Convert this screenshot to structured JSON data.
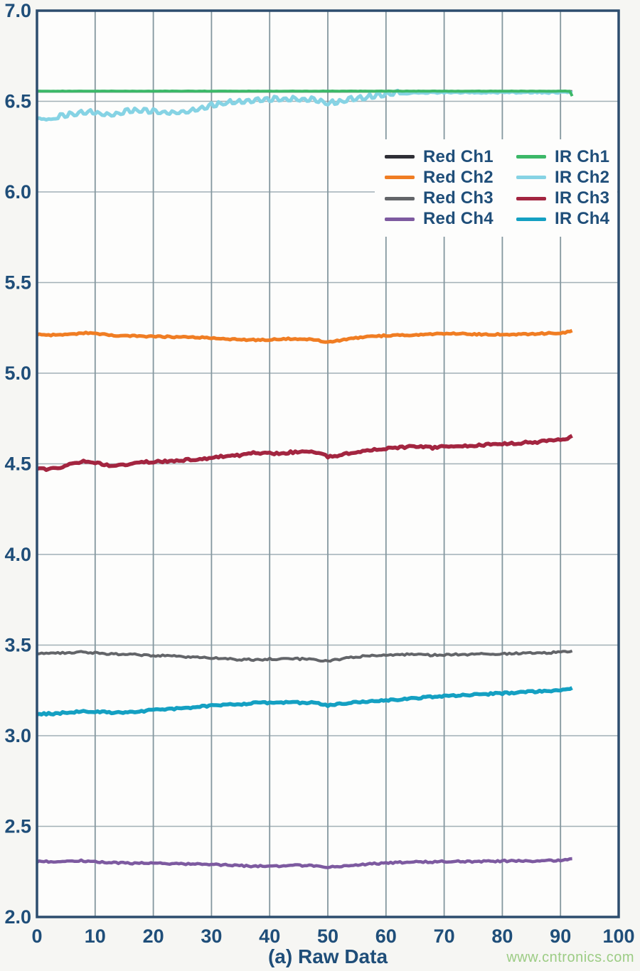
{
  "watermark": {
    "text": "www.cntronics.com",
    "color": "#9ccc84"
  },
  "chart_data": {
    "type": "line",
    "title": "(a) Raw Data",
    "xlabel": "",
    "ylabel": "",
    "xlim": [
      0,
      100
    ],
    "ylim": [
      2.0,
      7.0
    ],
    "grid": true,
    "legend_position": "inside-upper-right",
    "xticks": [
      "0",
      "10",
      "20",
      "30",
      "40",
      "50",
      "60",
      "70",
      "80",
      "90",
      "100"
    ],
    "yticks": [
      "7.0",
      "6.5",
      "6.0",
      "5.5",
      "5.0",
      "4.5",
      "4.0",
      "3.5",
      "3.0",
      "2.5",
      "2.0"
    ],
    "colors": {
      "frame": "#2d4d6e",
      "grid_vertical": "#84979f",
      "grid_horizontal": "#a2b0b6",
      "tick_text": "#1f4e79",
      "plot_background": "#fdfdfc"
    },
    "legend": {
      "columns": [
        [
          "Red Ch1",
          "Red Ch2",
          "Red Ch3",
          "Red Ch4"
        ],
        [
          "IR Ch1",
          "IR Ch2",
          "IR Ch3",
          "IR Ch4"
        ]
      ]
    },
    "series": [
      {
        "name": "Red Ch1",
        "color": "#2f2f36",
        "width": 3.5,
        "amp": 0.0,
        "points": [
          [
            0,
            6.555
          ],
          [
            92,
            6.555
          ]
        ]
      },
      {
        "name": "IR Ch2",
        "color": "#86d3e4",
        "width": 5,
        "amp": 0.004,
        "spike_amp": 0.016,
        "spike_range": [
          3,
          62
        ],
        "points": [
          [
            0,
            6.408
          ],
          [
            2,
            6.4
          ],
          [
            4,
            6.408
          ],
          [
            6,
            6.42
          ],
          [
            8,
            6.432
          ],
          [
            10,
            6.43
          ],
          [
            12,
            6.418
          ],
          [
            14,
            6.425
          ],
          [
            16,
            6.438
          ],
          [
            18,
            6.44
          ],
          [
            20,
            6.435
          ],
          [
            22,
            6.43
          ],
          [
            24,
            6.432
          ],
          [
            26,
            6.438
          ],
          [
            28,
            6.45
          ],
          [
            30,
            6.468
          ],
          [
            32,
            6.48
          ],
          [
            34,
            6.488
          ],
          [
            36,
            6.492
          ],
          [
            38,
            6.498
          ],
          [
            40,
            6.502
          ],
          [
            42,
            6.505
          ],
          [
            44,
            6.505
          ],
          [
            46,
            6.503
          ],
          [
            48,
            6.498
          ],
          [
            50,
            6.48
          ],
          [
            52,
            6.49
          ],
          [
            54,
            6.502
          ],
          [
            56,
            6.51
          ],
          [
            58,
            6.52
          ],
          [
            60,
            6.53
          ],
          [
            62,
            6.538
          ],
          [
            64,
            6.545
          ],
          [
            66,
            6.548
          ],
          [
            70,
            6.549
          ],
          [
            75,
            6.549
          ],
          [
            80,
            6.549
          ],
          [
            85,
            6.549
          ],
          [
            90,
            6.549
          ],
          [
            92,
            6.549
          ]
        ]
      },
      {
        "name": "IR Ch1",
        "color": "#3cb868",
        "width": 4,
        "amp": 0.0008,
        "points": [
          [
            0,
            6.556
          ],
          [
            91.3,
            6.556
          ],
          [
            91.8,
            6.556
          ],
          [
            92,
            6.528
          ]
        ]
      },
      {
        "name": "Red Ch2",
        "color": "#f07d23",
        "width": 5,
        "amp": 0.004,
        "points": [
          [
            0,
            5.212
          ],
          [
            3,
            5.21
          ],
          [
            6,
            5.215
          ],
          [
            8,
            5.222
          ],
          [
            10,
            5.218
          ],
          [
            13,
            5.208
          ],
          [
            16,
            5.205
          ],
          [
            20,
            5.202
          ],
          [
            24,
            5.2
          ],
          [
            28,
            5.198
          ],
          [
            32,
            5.19
          ],
          [
            35,
            5.185
          ],
          [
            38,
            5.183
          ],
          [
            41,
            5.188
          ],
          [
            44,
            5.19
          ],
          [
            47,
            5.188
          ],
          [
            50,
            5.172
          ],
          [
            52,
            5.18
          ],
          [
            55,
            5.195
          ],
          [
            58,
            5.203
          ],
          [
            61,
            5.21
          ],
          [
            64,
            5.21
          ],
          [
            67,
            5.213
          ],
          [
            70,
            5.218
          ],
          [
            73,
            5.218
          ],
          [
            76,
            5.214
          ],
          [
            79,
            5.214
          ],
          [
            82,
            5.214
          ],
          [
            85,
            5.216
          ],
          [
            88,
            5.22
          ],
          [
            90,
            5.222
          ],
          [
            91.5,
            5.228
          ],
          [
            92,
            5.235
          ]
        ]
      },
      {
        "name": "IR Ch3",
        "color": "#a32540",
        "width": 5.5,
        "amp": 0.006,
        "points": [
          [
            0,
            4.47
          ],
          [
            2,
            4.472
          ],
          [
            4,
            4.482
          ],
          [
            6,
            4.5
          ],
          [
            8,
            4.515
          ],
          [
            10,
            4.508
          ],
          [
            12,
            4.492
          ],
          [
            14,
            4.492
          ],
          [
            16,
            4.5
          ],
          [
            18,
            4.508
          ],
          [
            20,
            4.512
          ],
          [
            23,
            4.515
          ],
          [
            26,
            4.522
          ],
          [
            29,
            4.53
          ],
          [
            32,
            4.542
          ],
          [
            35,
            4.548
          ],
          [
            37,
            4.56
          ],
          [
            39,
            4.558
          ],
          [
            41,
            4.555
          ],
          [
            43,
            4.562
          ],
          [
            45,
            4.565
          ],
          [
            47,
            4.568
          ],
          [
            49,
            4.552
          ],
          [
            50,
            4.538
          ],
          [
            52,
            4.548
          ],
          [
            54,
            4.56
          ],
          [
            56,
            4.572
          ],
          [
            58,
            4.578
          ],
          [
            60,
            4.585
          ],
          [
            62,
            4.588
          ],
          [
            64,
            4.595
          ],
          [
            66,
            4.598
          ],
          [
            68,
            4.588
          ],
          [
            70,
            4.596
          ],
          [
            72,
            4.6
          ],
          [
            74,
            4.6
          ],
          [
            76,
            4.604
          ],
          [
            78,
            4.606
          ],
          [
            80,
            4.61
          ],
          [
            82,
            4.612
          ],
          [
            84,
            4.618
          ],
          [
            86,
            4.62
          ],
          [
            88,
            4.626
          ],
          [
            90,
            4.632
          ],
          [
            91.5,
            4.64
          ],
          [
            92,
            4.655
          ]
        ]
      },
      {
        "name": "Red Ch3",
        "color": "#636569",
        "width": 4,
        "amp": 0.005,
        "points": [
          [
            0,
            3.455
          ],
          [
            4,
            3.455
          ],
          [
            8,
            3.462
          ],
          [
            12,
            3.452
          ],
          [
            16,
            3.448
          ],
          [
            20,
            3.443
          ],
          [
            24,
            3.438
          ],
          [
            28,
            3.432
          ],
          [
            32,
            3.425
          ],
          [
            35,
            3.42
          ],
          [
            38,
            3.42
          ],
          [
            41,
            3.424
          ],
          [
            44,
            3.424
          ],
          [
            47,
            3.422
          ],
          [
            50,
            3.413
          ],
          [
            53,
            3.428
          ],
          [
            56,
            3.438
          ],
          [
            60,
            3.448
          ],
          [
            64,
            3.448
          ],
          [
            68,
            3.444
          ],
          [
            72,
            3.448
          ],
          [
            76,
            3.45
          ],
          [
            80,
            3.452
          ],
          [
            84,
            3.454
          ],
          [
            88,
            3.458
          ],
          [
            91,
            3.464
          ],
          [
            92,
            3.47
          ]
        ]
      },
      {
        "name": "IR Ch4",
        "color": "#14a0c2",
        "width": 5.5,
        "amp": 0.005,
        "points": [
          [
            0,
            3.12
          ],
          [
            3,
            3.122
          ],
          [
            6,
            3.13
          ],
          [
            8,
            3.138
          ],
          [
            10,
            3.132
          ],
          [
            13,
            3.128
          ],
          [
            16,
            3.132
          ],
          [
            19,
            3.138
          ],
          [
            22,
            3.145
          ],
          [
            25,
            3.152
          ],
          [
            28,
            3.16
          ],
          [
            31,
            3.167
          ],
          [
            34,
            3.172
          ],
          [
            37,
            3.18
          ],
          [
            40,
            3.183
          ],
          [
            43,
            3.183
          ],
          [
            46,
            3.183
          ],
          [
            48,
            3.18
          ],
          [
            50,
            3.168
          ],
          [
            52,
            3.175
          ],
          [
            55,
            3.185
          ],
          [
            58,
            3.19
          ],
          [
            61,
            3.198
          ],
          [
            64,
            3.205
          ],
          [
            67,
            3.212
          ],
          [
            70,
            3.218
          ],
          [
            73,
            3.222
          ],
          [
            76,
            3.228
          ],
          [
            79,
            3.232
          ],
          [
            82,
            3.238
          ],
          [
            85,
            3.242
          ],
          [
            88,
            3.248
          ],
          [
            90,
            3.252
          ],
          [
            91.5,
            3.256
          ],
          [
            92,
            3.266
          ]
        ]
      },
      {
        "name": "Red Ch4",
        "color": "#7d5aa0",
        "width": 4.5,
        "amp": 0.0045,
        "points": [
          [
            0,
            2.305
          ],
          [
            4,
            2.306
          ],
          [
            8,
            2.31
          ],
          [
            12,
            2.3
          ],
          [
            16,
            2.297
          ],
          [
            20,
            2.296
          ],
          [
            24,
            2.295
          ],
          [
            28,
            2.291
          ],
          [
            32,
            2.287
          ],
          [
            36,
            2.281
          ],
          [
            40,
            2.28
          ],
          [
            44,
            2.284
          ],
          [
            47,
            2.284
          ],
          [
            50,
            2.274
          ],
          [
            53,
            2.284
          ],
          [
            56,
            2.29
          ],
          [
            60,
            2.298
          ],
          [
            64,
            2.303
          ],
          [
            68,
            2.304
          ],
          [
            72,
            2.308
          ],
          [
            76,
            2.305
          ],
          [
            80,
            2.309
          ],
          [
            84,
            2.309
          ],
          [
            88,
            2.31
          ],
          [
            91,
            2.314
          ],
          [
            92,
            2.32
          ]
        ]
      }
    ]
  }
}
